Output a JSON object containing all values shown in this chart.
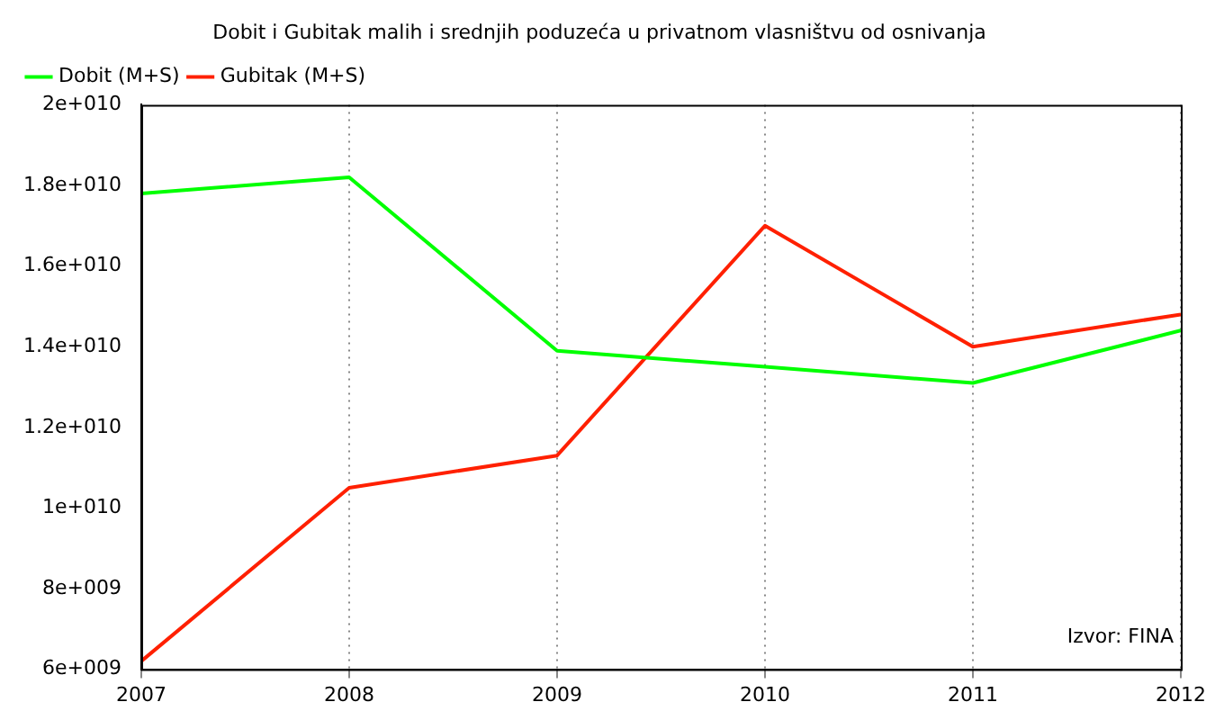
{
  "chart_data": {
    "type": "line",
    "title": "Dobit i Gubitak malih i srednjih poduzeća u privatnom vlasništvu od osnivanja",
    "x": [
      2007,
      2008,
      2009,
      2010,
      2011,
      2012
    ],
    "series": [
      {
        "name": "Dobit (M+S)",
        "color": "#00ff00",
        "values": [
          17800000000,
          18200000000,
          13900000000,
          13500000000,
          13100000000,
          14400000000
        ]
      },
      {
        "name": "Gubitak (M+S)",
        "color": "#ff2000",
        "values": [
          6200000000,
          10500000000,
          11300000000,
          17000000000,
          14000000000,
          14800000000
        ]
      }
    ],
    "xlim": [
      2007,
      2012
    ],
    "xticks": [
      2007,
      2008,
      2009,
      2010,
      2011,
      2012
    ],
    "ylim": [
      6000000000,
      20000000000
    ],
    "yticks": [
      {
        "value": 6000000000,
        "label": "6e+009"
      },
      {
        "value": 8000000000,
        "label": "8e+009"
      },
      {
        "value": 10000000000,
        "label": "1e+010"
      },
      {
        "value": 12000000000,
        "label": "1.2e+010"
      },
      {
        "value": 14000000000,
        "label": "1.4e+010"
      },
      {
        "value": 16000000000,
        "label": "1.6e+010"
      },
      {
        "value": 18000000000,
        "label": "1.8e+010"
      },
      {
        "value": 20000000000,
        "label": "2e+010"
      }
    ],
    "grid": "x",
    "legend": "top left",
    "marker": "none",
    "line_style": "solid",
    "annotations": [
      "Izvor: FINA"
    ]
  }
}
